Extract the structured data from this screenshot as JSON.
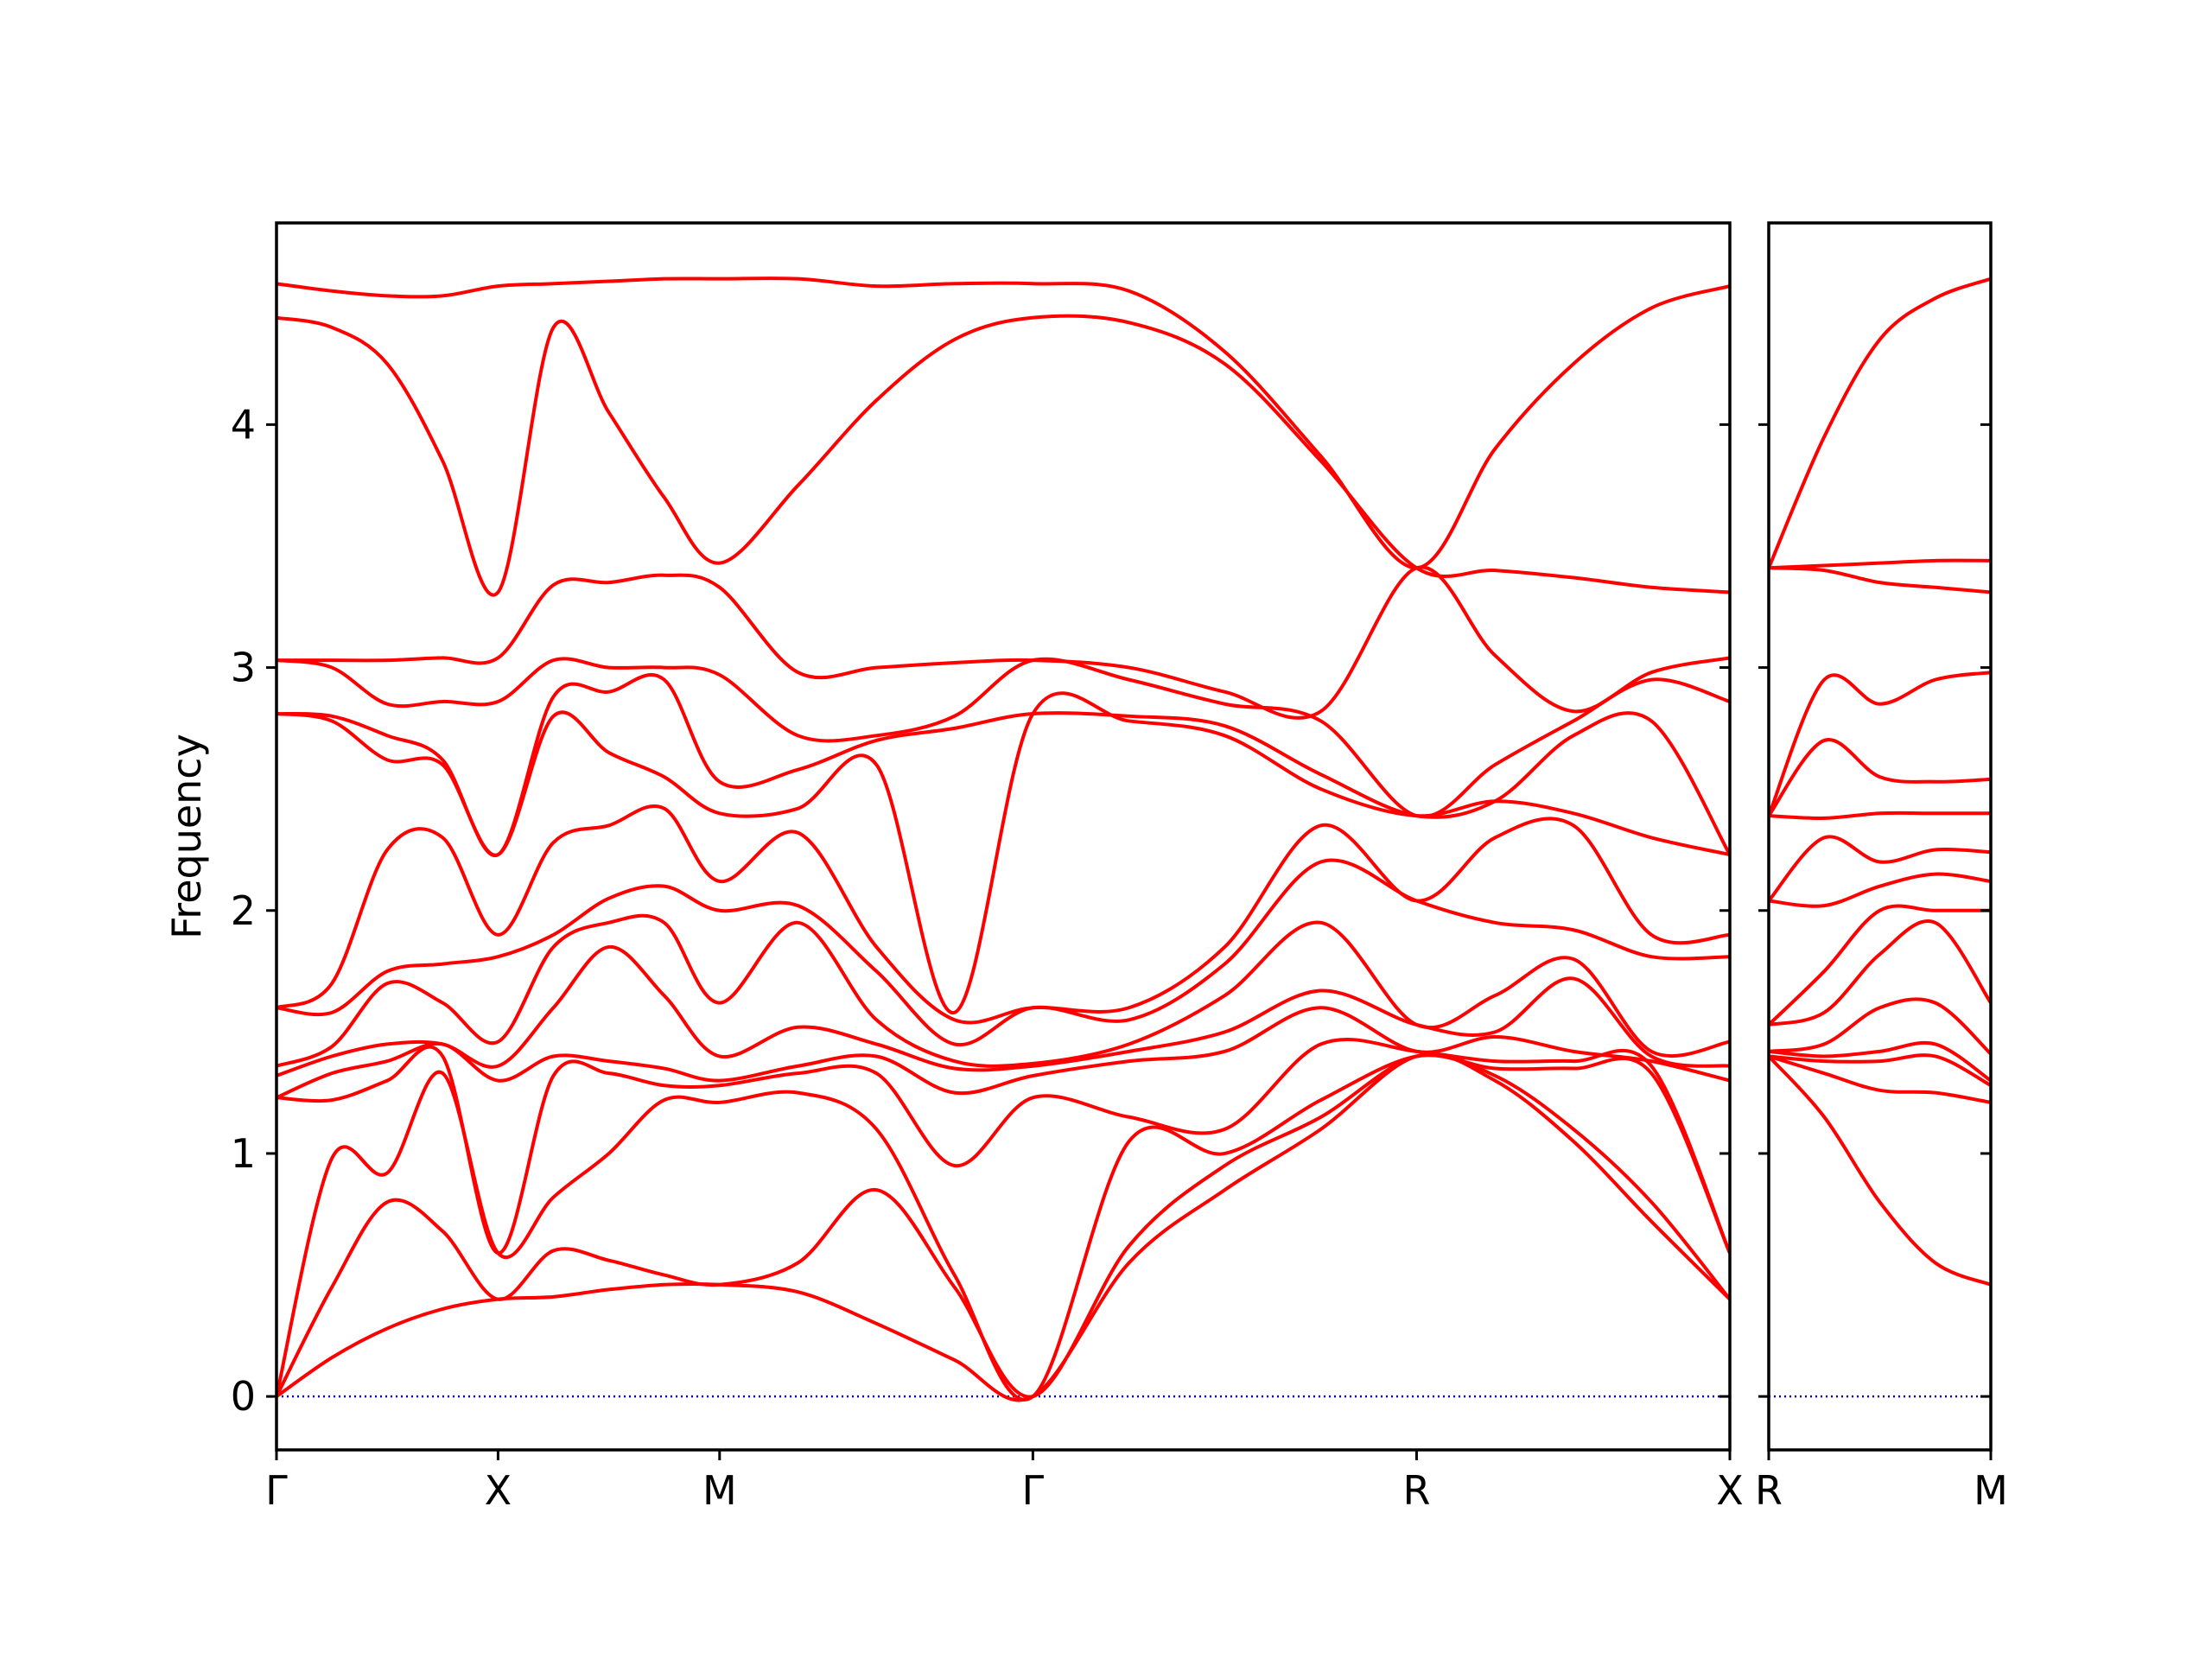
{
  "chart_data": [
    {
      "type": "line",
      "ylabel": "Frequency",
      "color": "#ff0000",
      "ytick_labels": true,
      "hline": 0,
      "hline_color": "#0000cc",
      "xlim": [
        0,
        3.28
      ],
      "ylim": [
        -0.22,
        4.83
      ],
      "yticks": [
        0,
        1,
        2,
        3,
        4
      ],
      "xticks": [
        {
          "value": 0,
          "label": "Γ"
        },
        {
          "value": 0.5,
          "label": "X"
        },
        {
          "value": 1.0,
          "label": "M"
        },
        {
          "value": 1.707,
          "label": "Γ"
        },
        {
          "value": 2.573,
          "label": "R"
        },
        {
          "value": 3.28,
          "label": "X"
        }
      ],
      "x": [
        0,
        0.125,
        0.25,
        0.375,
        0.5,
        0.625,
        0.75,
        0.875,
        1.0,
        1.177,
        1.354,
        1.53,
        1.707,
        1.924,
        2.14,
        2.357,
        2.573,
        2.75,
        2.927,
        3.103,
        3.28
      ],
      "series": [
        {
          "values": [
            0,
            0.16,
            0.28,
            0.36,
            0.4,
            0.41,
            0.44,
            0.46,
            0.46,
            0.43,
            0.3,
            0.15,
            0,
            0.55,
            0.85,
            1.1,
            1.4,
            1.3,
            1.05,
            0.72,
            0.4
          ]
        },
        {
          "values": [
            0,
            0.45,
            0.8,
            0.68,
            0.4,
            0.6,
            0.56,
            0.5,
            0.46,
            0.55,
            0.85,
            0.45,
            0,
            0.62,
            0.95,
            1.15,
            1.4,
            1.32,
            1.1,
            0.8,
            0.4
          ]
        },
        {
          "values": [
            0,
            0.98,
            0.92,
            1.33,
            0.59,
            0.82,
            1.0,
            1.22,
            1.21,
            1.25,
            1.1,
            0.5,
            0,
            1.05,
            1.0,
            1.22,
            1.4,
            1.35,
            1.35,
            1.33,
            0.59
          ]
        },
        {
          "values": [
            1.23,
            1.22,
            1.3,
            1.4,
            0.59,
            1.32,
            1.33,
            1.28,
            1.28,
            1.33,
            1.33,
            0.95,
            1.23,
            1.15,
            1.1,
            1.45,
            1.42,
            1.38,
            1.38,
            1.36,
            0.59
          ]
        },
        {
          "values": [
            1.23,
            1.33,
            1.38,
            1.45,
            1.3,
            1.4,
            1.38,
            1.35,
            1.3,
            1.36,
            1.4,
            1.25,
            1.32,
            1.38,
            1.42,
            1.6,
            1.42,
            1.48,
            1.42,
            1.38,
            1.3
          ]
        },
        {
          "values": [
            1.32,
            1.4,
            1.45,
            1.45,
            1.36,
            1.6,
            1.85,
            1.65,
            1.4,
            1.52,
            1.45,
            1.35,
            1.36,
            1.42,
            1.5,
            1.67,
            1.53,
            1.5,
            1.72,
            1.4,
            1.36
          ]
        },
        {
          "values": [
            1.36,
            1.44,
            1.7,
            1.62,
            1.46,
            1.85,
            1.95,
            1.95,
            1.62,
            1.95,
            1.55,
            1.38,
            1.37,
            1.45,
            1.65,
            1.95,
            1.53,
            1.65,
            1.8,
            1.42,
            1.46
          ]
        },
        {
          "values": [
            1.6,
            1.58,
            1.75,
            1.78,
            1.81,
            1.9,
            2.05,
            2.1,
            2.0,
            2.02,
            1.75,
            1.45,
            1.6,
            1.55,
            1.78,
            2.2,
            2.04,
            1.95,
            1.92,
            1.81,
            1.81
          ]
        },
        {
          "values": [
            1.6,
            1.7,
            2.25,
            2.3,
            1.9,
            2.28,
            2.35,
            2.42,
            2.12,
            2.32,
            1.85,
            1.55,
            1.6,
            1.6,
            1.85,
            2.35,
            2.04,
            2.3,
            2.35,
            1.9,
            1.9
          ]
        },
        {
          "values": [
            2.81,
            2.78,
            2.62,
            2.6,
            2.23,
            2.8,
            2.65,
            2.55,
            2.4,
            2.42,
            2.6,
            1.58,
            2.81,
            2.78,
            2.72,
            2.5,
            2.39,
            2.45,
            2.4,
            2.3,
            2.23
          ]
        },
        {
          "values": [
            2.81,
            2.8,
            2.72,
            2.62,
            2.23,
            2.88,
            2.9,
            2.95,
            2.53,
            2.58,
            2.7,
            2.75,
            2.81,
            2.8,
            2.76,
            2.56,
            2.39,
            2.45,
            2.72,
            2.78,
            2.23
          ]
        },
        {
          "values": [
            3.03,
            3.0,
            2.85,
            2.86,
            2.86,
            3.03,
            3.0,
            3.0,
            2.97,
            2.72,
            2.72,
            2.8,
            3.03,
            2.95,
            2.85,
            2.78,
            2.39,
            2.6,
            2.78,
            2.95,
            2.86
          ]
        },
        {
          "values": [
            3.03,
            3.03,
            3.03,
            3.04,
            3.04,
            3.34,
            3.35,
            3.38,
            3.33,
            2.98,
            3.0,
            3.02,
            3.03,
            3.0,
            2.9,
            2.82,
            3.41,
            3.05,
            2.82,
            2.98,
            3.04
          ]
        },
        {
          "values": [
            4.44,
            4.4,
            4.25,
            3.85,
            3.31,
            4.4,
            4.05,
            3.7,
            3.43,
            3.75,
            4.1,
            4.35,
            4.44,
            4.42,
            4.25,
            3.85,
            3.41,
            3.4,
            3.37,
            3.33,
            3.31
          ]
        },
        {
          "values": [
            4.58,
            4.55,
            4.53,
            4.53,
            4.57,
            4.58,
            4.59,
            4.6,
            4.6,
            4.6,
            4.57,
            4.58,
            4.58,
            4.55,
            4.3,
            3.87,
            3.41,
            3.9,
            4.25,
            4.48,
            4.57
          ]
        }
      ]
    },
    {
      "type": "line",
      "color": "#ff0000",
      "ytick_labels": false,
      "hline": 0,
      "hline_color": "#0000cc",
      "xlim": [
        0,
        0.5
      ],
      "ylim": [
        -0.22,
        4.83
      ],
      "yticks": [
        0,
        1,
        2,
        3,
        4
      ],
      "xticks": [
        {
          "value": 0,
          "label": "R"
        },
        {
          "value": 0.5,
          "label": "M"
        }
      ],
      "x": [
        0,
        0.125,
        0.25,
        0.375,
        0.5
      ],
      "series": [
        {
          "values": [
            1.4,
            1.15,
            0.8,
            0.55,
            0.46
          ]
        },
        {
          "values": [
            1.4,
            1.33,
            1.26,
            1.25,
            1.21
          ]
        },
        {
          "values": [
            1.4,
            1.38,
            1.38,
            1.4,
            1.28
          ]
        },
        {
          "values": [
            1.42,
            1.4,
            1.42,
            1.45,
            1.3
          ]
        },
        {
          "values": [
            1.42,
            1.45,
            1.6,
            1.62,
            1.41
          ]
        },
        {
          "values": [
            1.53,
            1.58,
            1.82,
            1.95,
            1.62
          ]
        },
        {
          "values": [
            1.53,
            1.75,
            2.0,
            2.0,
            2.0
          ]
        },
        {
          "values": [
            2.04,
            2.02,
            2.1,
            2.15,
            2.12
          ]
        },
        {
          "values": [
            2.04,
            2.3,
            2.2,
            2.25,
            2.24
          ]
        },
        {
          "values": [
            2.39,
            2.38,
            2.4,
            2.4,
            2.4
          ]
        },
        {
          "values": [
            2.39,
            2.7,
            2.55,
            2.53,
            2.54
          ]
        },
        {
          "values": [
            2.39,
            2.95,
            2.85,
            2.95,
            2.98
          ]
        },
        {
          "values": [
            3.41,
            3.4,
            3.35,
            3.33,
            3.31
          ]
        },
        {
          "values": [
            3.41,
            3.42,
            3.43,
            3.44,
            3.44
          ]
        },
        {
          "values": [
            3.41,
            3.95,
            4.35,
            4.52,
            4.6
          ]
        }
      ]
    }
  ]
}
